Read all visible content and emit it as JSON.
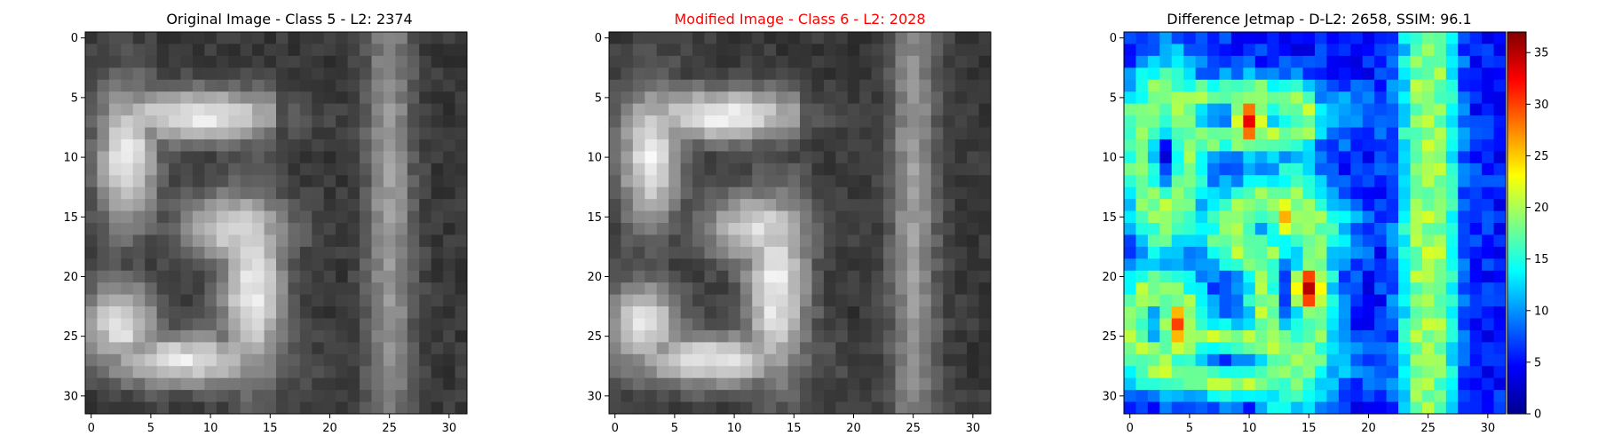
{
  "figure": {
    "panels": [
      {
        "title": "Original Image - Class 5 - L2: 2374",
        "title_color": "#000000"
      },
      {
        "title": "Modified Image - Class 6 - L2: 2028",
        "title_color": "#ff0000"
      },
      {
        "title": "Difference Jetmap - D-L2: 2658, SSIM: 96.1",
        "title_color": "#000000"
      }
    ]
  },
  "chart_data": [
    {
      "type": "heatmap",
      "title": "Original Image - Class 5 - L2: 2374",
      "colormap": "gray",
      "grid_size": [
        32,
        32
      ],
      "xlim": [
        -0.5,
        31.5
      ],
      "ylim": [
        31.5,
        -0.5
      ],
      "xticks": [
        "0",
        "5",
        "10",
        "15",
        "20",
        "25",
        "30"
      ],
      "yticks": [
        "0",
        "5",
        "10",
        "15",
        "20",
        "25",
        "30"
      ],
      "grid": false,
      "content": "grayscale digit '5' with vertical stripe at right"
    },
    {
      "type": "heatmap",
      "title": "Modified Image - Class 6 - L2: 2028",
      "colormap": "gray",
      "grid_size": [
        32,
        32
      ],
      "xlim": [
        -0.5,
        31.5
      ],
      "ylim": [
        31.5,
        -0.5
      ],
      "xticks": [
        "0",
        "5",
        "10",
        "15",
        "20",
        "25",
        "30"
      ],
      "yticks": [
        "0",
        "5",
        "10",
        "15",
        "20",
        "25",
        "30"
      ],
      "grid": false,
      "content": "slightly perturbed version of the original digit"
    },
    {
      "type": "heatmap",
      "title": "Difference Jetmap - D-L2: 2658, SSIM: 96.1",
      "colormap": "jet",
      "grid_size": [
        32,
        32
      ],
      "xlim": [
        -0.5,
        31.5
      ],
      "ylim": [
        31.5,
        -0.5
      ],
      "xticks": [
        "0",
        "5",
        "10",
        "15",
        "20",
        "25",
        "30"
      ],
      "yticks": [
        "0",
        "5",
        "10",
        "15",
        "20",
        "25",
        "30"
      ],
      "grid": false,
      "colorbar": {
        "range": [
          0,
          37
        ],
        "ticks": [
          "0",
          "5",
          "10",
          "15",
          "20",
          "25",
          "30",
          "35"
        ],
        "tick_values": [
          0,
          5,
          10,
          15,
          20,
          25,
          30,
          35
        ]
      },
      "hotspots": [
        {
          "x": 15,
          "y": 21,
          "value": 35
        },
        {
          "x": 10,
          "y": 7,
          "value": 33
        },
        {
          "x": 4,
          "y": 24,
          "value": 30
        },
        {
          "x": 13,
          "y": 15,
          "value": 26
        }
      ]
    }
  ]
}
